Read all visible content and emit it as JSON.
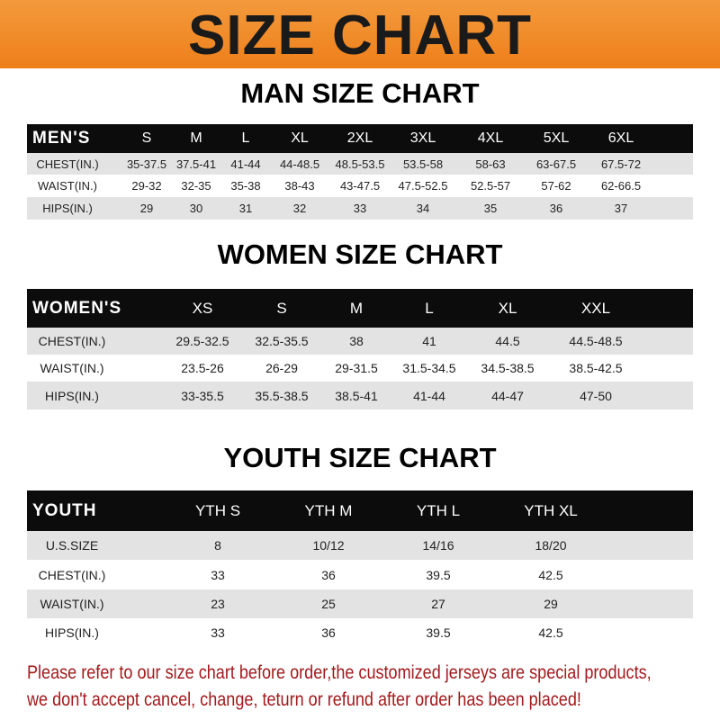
{
  "banner": {
    "title": "SIZE CHART",
    "color": "#ef8a24"
  },
  "men": {
    "title": "MAN SIZE CHART",
    "header": [
      "MEN'S",
      "S",
      "M",
      "L",
      "XL",
      "2XL",
      "3XL",
      "4XL",
      "5XL",
      "6XL"
    ],
    "rows": [
      [
        "CHEST(IN.)",
        "35-37.5",
        "37.5-41",
        "41-44",
        "44-48.5",
        "48.5-53.5",
        "53.5-58",
        "58-63",
        "63-67.5",
        "67.5-72"
      ],
      [
        "WAIST(IN.)",
        "29-32",
        "32-35",
        "35-38",
        "38-43",
        "43-47.5",
        "47.5-52.5",
        "52.5-57",
        "57-62",
        "62-66.5"
      ],
      [
        "HIPS(IN.)",
        "29",
        "30",
        "31",
        "32",
        "33",
        "34",
        "35",
        "36",
        "37"
      ]
    ]
  },
  "women": {
    "title": "WOMEN SIZE CHART",
    "header": [
      "WOMEN'S",
      "XS",
      "S",
      "M",
      "L",
      "XL",
      "XXL"
    ],
    "rows": [
      [
        "CHEST(IN.)",
        "29.5-32.5",
        "32.5-35.5",
        "38",
        "41",
        "44.5",
        "44.5-48.5"
      ],
      [
        "WAIST(IN.)",
        "23.5-26",
        "26-29",
        "29-31.5",
        "31.5-34.5",
        "34.5-38.5",
        "38.5-42.5"
      ],
      [
        "HIPS(IN.)",
        "33-35.5",
        "35.5-38.5",
        "38.5-41",
        "41-44",
        "44-47",
        "47-50"
      ]
    ]
  },
  "youth": {
    "title": "YOUTH SIZE CHART",
    "header": [
      "YOUTH",
      "YTH S",
      "YTH M",
      "YTH L",
      "YTH XL"
    ],
    "rows": [
      [
        "U.S.SIZE",
        "8",
        "10/12",
        "14/16",
        "18/20"
      ],
      [
        "CHEST(IN.)",
        "33",
        "36",
        "39.5",
        "42.5"
      ],
      [
        "WAIST(IN.)",
        "23",
        "25",
        "27",
        "29"
      ],
      [
        "HIPS(IN.)",
        "33",
        "36",
        "39.5",
        "42.5"
      ]
    ]
  },
  "notice": {
    "line1": "Please refer to our size chart before order,the customized jerseys are special products,",
    "line2": "we don't accept cancel, change, teturn or refund after order has been placed!",
    "color": "#a3191c"
  }
}
